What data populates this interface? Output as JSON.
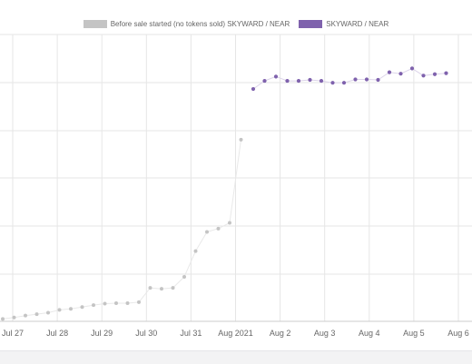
{
  "chart_data": {
    "type": "scatter",
    "x_tick_labels": [
      "Jul 27",
      "Jul 28",
      "Jul 29",
      "Jul 30",
      "Jul 31",
      "Aug 2021",
      "Aug 2",
      "Aug 3",
      "Aug 4",
      "Aug 5",
      "Aug 6"
    ],
    "grid": true,
    "legend_position": "top",
    "series": [
      {
        "name": "Before sale started (no tokens sold) SKYWARD / NEAR",
        "color": "#c4c4c4",
        "values": [
          0.05,
          0.08,
          0.12,
          0.15,
          0.18,
          0.24,
          0.26,
          0.3,
          0.34,
          0.37,
          0.38,
          0.38,
          0.4,
          0.7,
          0.68,
          0.7,
          0.93,
          1.47,
          1.87,
          1.94,
          2.06,
          3.8
        ]
      },
      {
        "name": "SKYWARD / NEAR",
        "color": "#7f62ad",
        "values": [
          4.86,
          5.03,
          5.12,
          5.03,
          5.03,
          5.05,
          5.03,
          4.99,
          4.99,
          5.06,
          5.06,
          5.05,
          5.21,
          5.18,
          5.29,
          5.14,
          5.17,
          5.19
        ]
      }
    ]
  }
}
